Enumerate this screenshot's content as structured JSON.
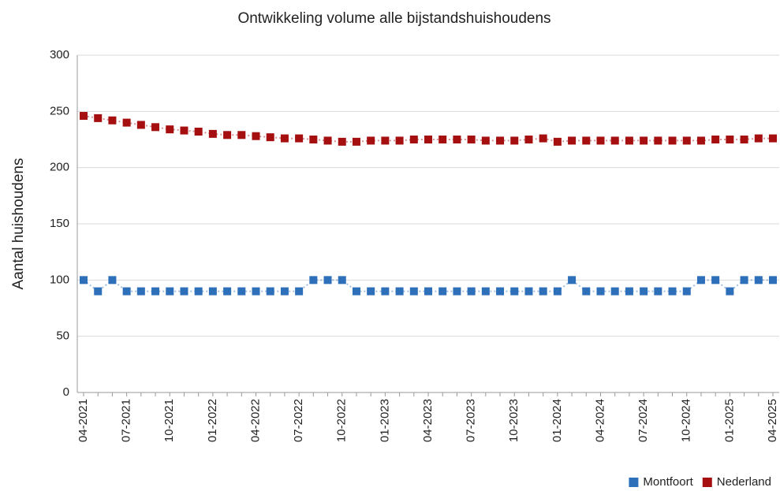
{
  "chart_data": {
    "type": "line",
    "title": "Ontwikkeling volume alle bijstandshuishoudens",
    "y_label": "Aantal huishoudens",
    "categories": [
      "04-2021",
      null,
      null,
      "07-2021",
      null,
      null,
      "10-2021",
      null,
      null,
      "01-2022",
      null,
      null,
      "04-2022",
      null,
      null,
      "07-2022",
      null,
      null,
      "10-2022",
      null,
      null,
      "01-2023",
      null,
      null,
      "04-2023",
      null,
      null,
      "07-2023",
      null,
      null,
      "10-2023",
      null,
      null,
      "01-2024",
      null,
      null,
      "04-2024",
      null,
      null,
      "07-2024",
      null,
      null,
      "10-2024",
      null,
      null,
      "01-2025",
      null,
      null,
      "04-2025"
    ],
    "series": [
      {
        "name": "Montfoort",
        "color": "#2e6fba",
        "values": [
          100,
          90,
          100,
          90,
          90,
          90,
          90,
          90,
          90,
          90,
          90,
          90,
          90,
          90,
          90,
          90,
          100,
          100,
          100,
          90,
          90,
          90,
          90,
          90,
          90,
          90,
          90,
          90,
          90,
          90,
          90,
          90,
          90,
          90,
          100,
          90,
          90,
          90,
          90,
          90,
          90,
          90,
          90,
          100,
          100,
          90,
          100,
          100,
          100
        ]
      },
      {
        "name": "Nederland",
        "color": "#a50f0f",
        "values": [
          246,
          244,
          242,
          240,
          238,
          236,
          234,
          233,
          232,
          230,
          229,
          229,
          228,
          227,
          226,
          226,
          225,
          224,
          223,
          223,
          224,
          224,
          224,
          225,
          225,
          225,
          225,
          225,
          224,
          224,
          224,
          225,
          226,
          223,
          224,
          224,
          224,
          224,
          224,
          224,
          224,
          224,
          224,
          224,
          225,
          225,
          225,
          226,
          226
        ]
      }
    ],
    "ylim": [
      0,
      300
    ],
    "yticks": [
      0,
      50,
      100,
      150,
      200,
      250,
      300
    ],
    "grid": true,
    "legend": "bottom-right"
  }
}
